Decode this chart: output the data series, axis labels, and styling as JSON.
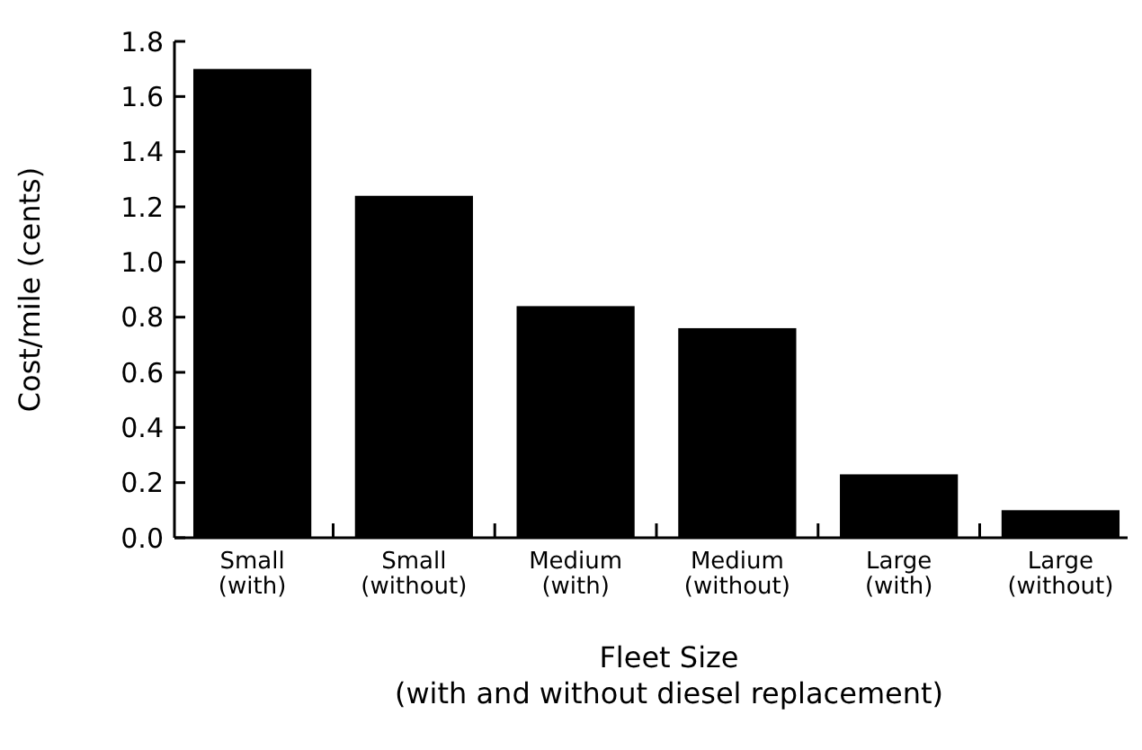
{
  "chart_data": {
    "type": "bar",
    "xlabel": "Fleet Size\n(with and without diesel replacement)",
    "ylabel": "Cost/mile (cents)",
    "categories": [
      "Small\n(with)",
      "Small\n(without)",
      "Medium\n(with)",
      "Medium\n(without)",
      "Large\n(with)",
      "Large\n(without)"
    ],
    "values": [
      1.7,
      1.24,
      0.84,
      0.76,
      0.23,
      0.1
    ],
    "color": "#000000",
    "ylim": [
      0,
      1.8
    ],
    "yticks": [
      {
        "value": 0,
        "label": "0.0"
      },
      {
        "value": 0.2,
        "label": "0.2"
      },
      {
        "value": 0.4,
        "label": "0.4"
      },
      {
        "value": 0.6,
        "label": "0.6"
      },
      {
        "value": 0.8,
        "label": "0.8"
      },
      {
        "value": 1,
        "label": "1.0"
      },
      {
        "value": 1.2,
        "label": "1.2"
      },
      {
        "value": 1.4,
        "label": "1.4"
      },
      {
        "value": 1.6,
        "label": "1.6"
      },
      {
        "value": 1.8,
        "label": "1.8"
      }
    ]
  }
}
